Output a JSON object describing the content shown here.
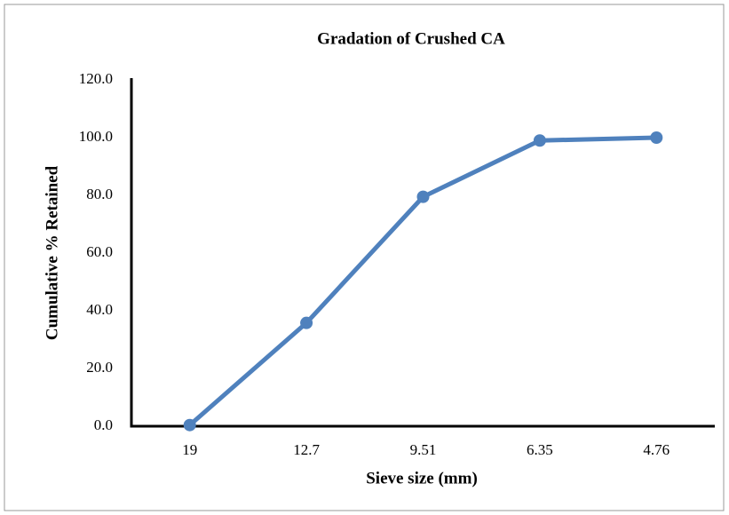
{
  "chart_data": {
    "type": "line",
    "title": "Gradation of Crushed CA",
    "x_label": "Sieve size (mm)",
    "y_label": "Cumulative % Retained",
    "categories": [
      "19",
      "12.7",
      "9.51",
      "6.35",
      "4.76"
    ],
    "values": [
      0.4,
      35.8,
      79.5,
      99.0,
      100.0
    ],
    "color": "#4f81bd",
    "ylim": [
      0,
      120
    ],
    "yticks": [
      {
        "value": 0,
        "label": "0.0"
      },
      {
        "value": 20,
        "label": "20.0"
      },
      {
        "value": 40,
        "label": "40.0"
      },
      {
        "value": 60,
        "label": "60.0"
      },
      {
        "value": 80,
        "label": "80.0"
      },
      {
        "value": 100,
        "label": "100.0"
      },
      {
        "value": 120,
        "label": "120.0"
      }
    ],
    "grid": false
  }
}
